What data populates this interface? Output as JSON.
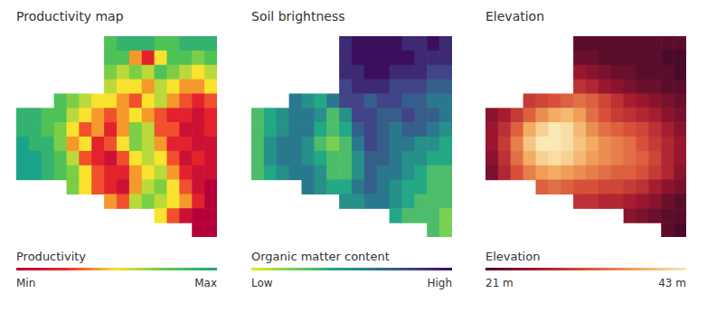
{
  "chart_data": [
    {
      "type": "heatmap",
      "title": "Productivity map",
      "tick_labels": false,
      "grid": false,
      "cells": [
        [
          null,
          null,
          null,
          null,
          null,
          null,
          null,
          8,
          9,
          9,
          9,
          8,
          8,
          9,
          9,
          9
        ],
        [
          null,
          null,
          null,
          null,
          null,
          null,
          null,
          8,
          8,
          4,
          2,
          5,
          8,
          8,
          7,
          8
        ],
        [
          null,
          null,
          null,
          null,
          null,
          null,
          null,
          7,
          6,
          7,
          6,
          8,
          7,
          6,
          5,
          6
        ],
        [
          null,
          null,
          null,
          null,
          null,
          null,
          null,
          6,
          5,
          5,
          4,
          6,
          5,
          4,
          4,
          5
        ],
        [
          null,
          null,
          null,
          8,
          7,
          6,
          5,
          5,
          4,
          3,
          5,
          6,
          4,
          3,
          2,
          3
        ],
        [
          9,
          9,
          8,
          8,
          6,
          5,
          4,
          3,
          4,
          5,
          4,
          3,
          2,
          2,
          1,
          2
        ],
        [
          9,
          9,
          8,
          7,
          5,
          3,
          4,
          2,
          4,
          7,
          6,
          3,
          3,
          1,
          1,
          2
        ],
        [
          10,
          9,
          9,
          7,
          4,
          5,
          2,
          3,
          5,
          7,
          6,
          4,
          2,
          2,
          1,
          1
        ],
        [
          10,
          10,
          9,
          8,
          6,
          3,
          2,
          1,
          3,
          5,
          6,
          5,
          3,
          1,
          2,
          1
        ],
        [
          10,
          10,
          9,
          8,
          7,
          5,
          3,
          2,
          2,
          4,
          5,
          6,
          4,
          2,
          1,
          1
        ],
        [
          null,
          null,
          null,
          null,
          7,
          5,
          3,
          2,
          1,
          4,
          6,
          7,
          5,
          3,
          1,
          0
        ],
        [
          null,
          null,
          null,
          null,
          null,
          null,
          null,
          4,
          3,
          6,
          7,
          6,
          5,
          4,
          2,
          0
        ],
        [
          null,
          null,
          null,
          null,
          null,
          null,
          null,
          null,
          null,
          null,
          null,
          5,
          3,
          1,
          0,
          0
        ],
        [
          null,
          null,
          null,
          null,
          null,
          null,
          null,
          null,
          null,
          null,
          null,
          null,
          null,
          null,
          0,
          0
        ]
      ],
      "colorbar": {
        "label": "Productivity",
        "range": [
          0,
          10
        ],
        "ticks": [
          {
            "value": 0,
            "label": "Min"
          },
          {
            "value": 10,
            "label": "Max"
          }
        ],
        "colors": [
          "#b5003a",
          "#ee2b2b",
          "#f9e32f",
          "#5cc94a",
          "#18a38a"
        ]
      }
    },
    {
      "type": "heatmap",
      "title": "Soil brightness",
      "tick_labels": false,
      "grid": false,
      "cells": [
        [
          null,
          null,
          null,
          null,
          null,
          null,
          null,
          9,
          10,
          10,
          10,
          10,
          9,
          9,
          10,
          9
        ],
        [
          null,
          null,
          null,
          null,
          null,
          null,
          null,
          9,
          10,
          10,
          10,
          10,
          10,
          9,
          9,
          9
        ],
        [
          null,
          null,
          null,
          null,
          null,
          null,
          null,
          9,
          9,
          10,
          10,
          9,
          9,
          9,
          8,
          8
        ],
        [
          null,
          null,
          null,
          null,
          null,
          null,
          null,
          8,
          9,
          9,
          9,
          8,
          8,
          8,
          7,
          7
        ],
        [
          null,
          null,
          null,
          6,
          5,
          4,
          6,
          8,
          8,
          7,
          8,
          8,
          7,
          7,
          6,
          6
        ],
        [
          3,
          4,
          5,
          6,
          6,
          5,
          3,
          5,
          8,
          8,
          7,
          7,
          8,
          7,
          7,
          6
        ],
        [
          3,
          4,
          5,
          6,
          6,
          4,
          3,
          4,
          7,
          8,
          7,
          6,
          7,
          7,
          6,
          5
        ],
        [
          3,
          5,
          6,
          6,
          5,
          3,
          2,
          3,
          6,
          8,
          7,
          6,
          6,
          5,
          5,
          4
        ],
        [
          3,
          5,
          6,
          6,
          5,
          4,
          3,
          3,
          5,
          7,
          7,
          6,
          5,
          5,
          4,
          4
        ],
        [
          3,
          4,
          5,
          6,
          6,
          5,
          3,
          3,
          5,
          7,
          6,
          6,
          5,
          4,
          3,
          3
        ],
        [
          null,
          null,
          null,
          null,
          6,
          5,
          4,
          4,
          6,
          7,
          6,
          5,
          4,
          4,
          3,
          3
        ],
        [
          null,
          null,
          null,
          null,
          null,
          null,
          null,
          5,
          5,
          6,
          6,
          5,
          4,
          3,
          3,
          3
        ],
        [
          null,
          null,
          null,
          null,
          null,
          null,
          null,
          null,
          null,
          null,
          null,
          4,
          3,
          3,
          3,
          2
        ],
        [
          null,
          null,
          null,
          null,
          null,
          null,
          null,
          null,
          null,
          null,
          null,
          null,
          null,
          null,
          3,
          2
        ]
      ],
      "colorbar": {
        "label": "Organic matter content",
        "range": [
          0,
          10
        ],
        "ticks": [
          {
            "value": 0,
            "label": "Low"
          },
          {
            "value": 10,
            "label": "High"
          }
        ],
        "colors": [
          "#e8ea1c",
          "#7ad151",
          "#22a884",
          "#2a788e",
          "#414487",
          "#3b0f5c"
        ]
      }
    },
    {
      "type": "heatmap",
      "title": "Elevation",
      "tick_labels": false,
      "grid": false,
      "cells": [
        [
          null,
          null,
          null,
          null,
          null,
          null,
          null,
          22,
          22,
          22,
          22,
          22,
          22,
          22,
          22,
          22
        ],
        [
          null,
          null,
          null,
          null,
          null,
          null,
          null,
          23,
          23,
          22,
          22,
          22,
          22,
          22,
          21,
          21
        ],
        [
          null,
          null,
          null,
          null,
          null,
          null,
          null,
          26,
          25,
          24,
          23,
          23,
          22,
          22,
          22,
          21
        ],
        [
          null,
          null,
          null,
          null,
          null,
          null,
          null,
          29,
          28,
          26,
          25,
          24,
          23,
          23,
          22,
          22
        ],
        [
          null,
          null,
          null,
          30,
          31,
          32,
          33,
          34,
          33,
          31,
          29,
          27,
          26,
          25,
          24,
          23
        ],
        [
          25,
          27,
          30,
          33,
          36,
          38,
          39,
          37,
          34,
          32,
          30,
          29,
          28,
          27,
          25,
          24
        ],
        [
          26,
          29,
          33,
          38,
          41,
          43,
          42,
          39,
          36,
          34,
          33,
          32,
          31,
          29,
          27,
          25
        ],
        [
          26,
          30,
          35,
          40,
          43,
          43,
          42,
          40,
          38,
          36,
          35,
          34,
          32,
          30,
          28,
          26
        ],
        [
          25,
          29,
          34,
          38,
          41,
          42,
          41,
          39,
          37,
          36,
          35,
          34,
          33,
          31,
          28,
          26
        ],
        [
          24,
          28,
          32,
          35,
          37,
          38,
          37,
          36,
          35,
          34,
          33,
          33,
          32,
          30,
          28,
          25
        ],
        [
          null,
          null,
          null,
          null,
          33,
          34,
          33,
          32,
          32,
          31,
          31,
          30,
          29,
          27,
          25,
          24
        ],
        [
          null,
          null,
          null,
          null,
          null,
          null,
          null,
          29,
          29,
          28,
          28,
          27,
          26,
          25,
          23,
          22
        ],
        [
          null,
          null,
          null,
          null,
          null,
          null,
          null,
          null,
          null,
          null,
          null,
          25,
          24,
          23,
          22,
          22
        ],
        [
          null,
          null,
          null,
          null,
          null,
          null,
          null,
          null,
          null,
          null,
          null,
          null,
          null,
          null,
          22,
          21
        ]
      ],
      "colorbar": {
        "label": "Elevation",
        "range": [
          21,
          43
        ],
        "ticks": [
          {
            "value": 21,
            "label": "21 m"
          },
          {
            "value": 43,
            "label": "43 m"
          }
        ],
        "colors": [
          "#4a0a2a",
          "#a2182f",
          "#d8503a",
          "#f2a65a",
          "#fae9b5"
        ]
      }
    }
  ]
}
